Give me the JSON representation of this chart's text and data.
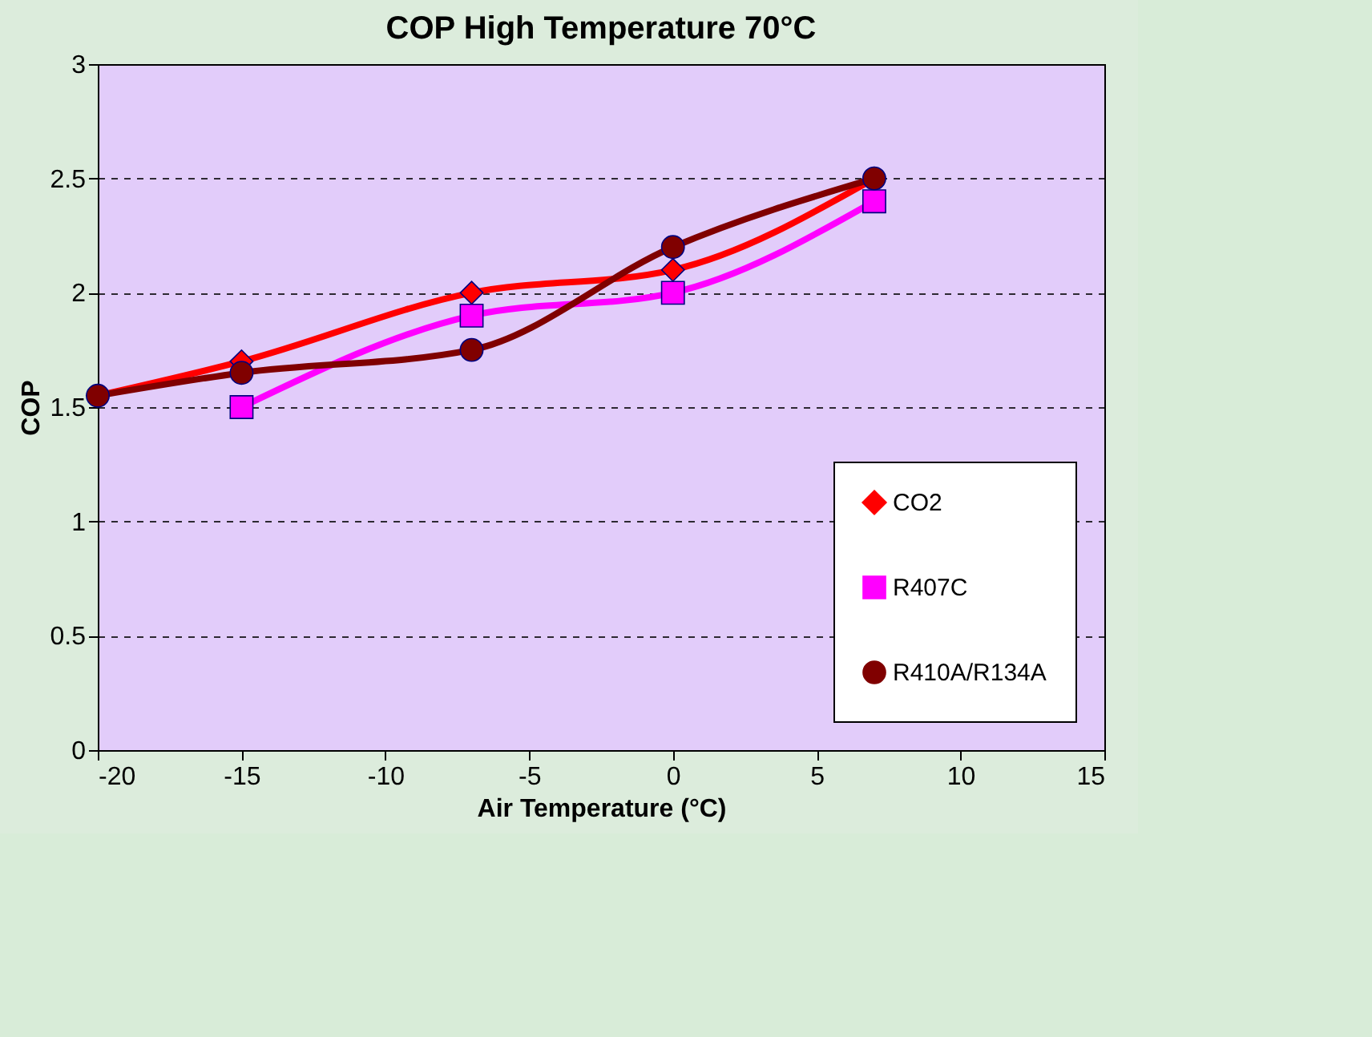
{
  "chart_data": {
    "type": "line",
    "title": "COP High Temperature 70°C",
    "xlabel": "Air Temperature (°C)",
    "ylabel": "COP",
    "xlim": [
      -20,
      15
    ],
    "xticks": [
      -20,
      -15,
      -10,
      -5,
      0,
      5,
      10,
      15
    ],
    "ylim": [
      0,
      3
    ],
    "yticks": [
      0,
      0.5,
      1,
      1.5,
      2,
      2.5,
      3
    ],
    "grid": "y",
    "legend": "bottom right",
    "series": [
      {
        "name": "CO2",
        "color": "#ff0000",
        "marker": "diamond",
        "x": [
          -20,
          -15,
          -7,
          0,
          7
        ],
        "values": [
          1.55,
          1.7,
          2.0,
          2.1,
          2.5
        ]
      },
      {
        "name": "R407C",
        "color": "#ff00ff",
        "marker": "square",
        "x": [
          -15,
          -7,
          0,
          7
        ],
        "values": [
          1.5,
          1.9,
          2.0,
          2.4
        ]
      },
      {
        "name": "R410A/R134A",
        "color": "#800000",
        "marker": "circle",
        "x": [
          -20,
          -15,
          -7,
          0,
          7
        ],
        "values": [
          1.55,
          1.65,
          1.75,
          2.2,
          2.5
        ]
      }
    ]
  }
}
